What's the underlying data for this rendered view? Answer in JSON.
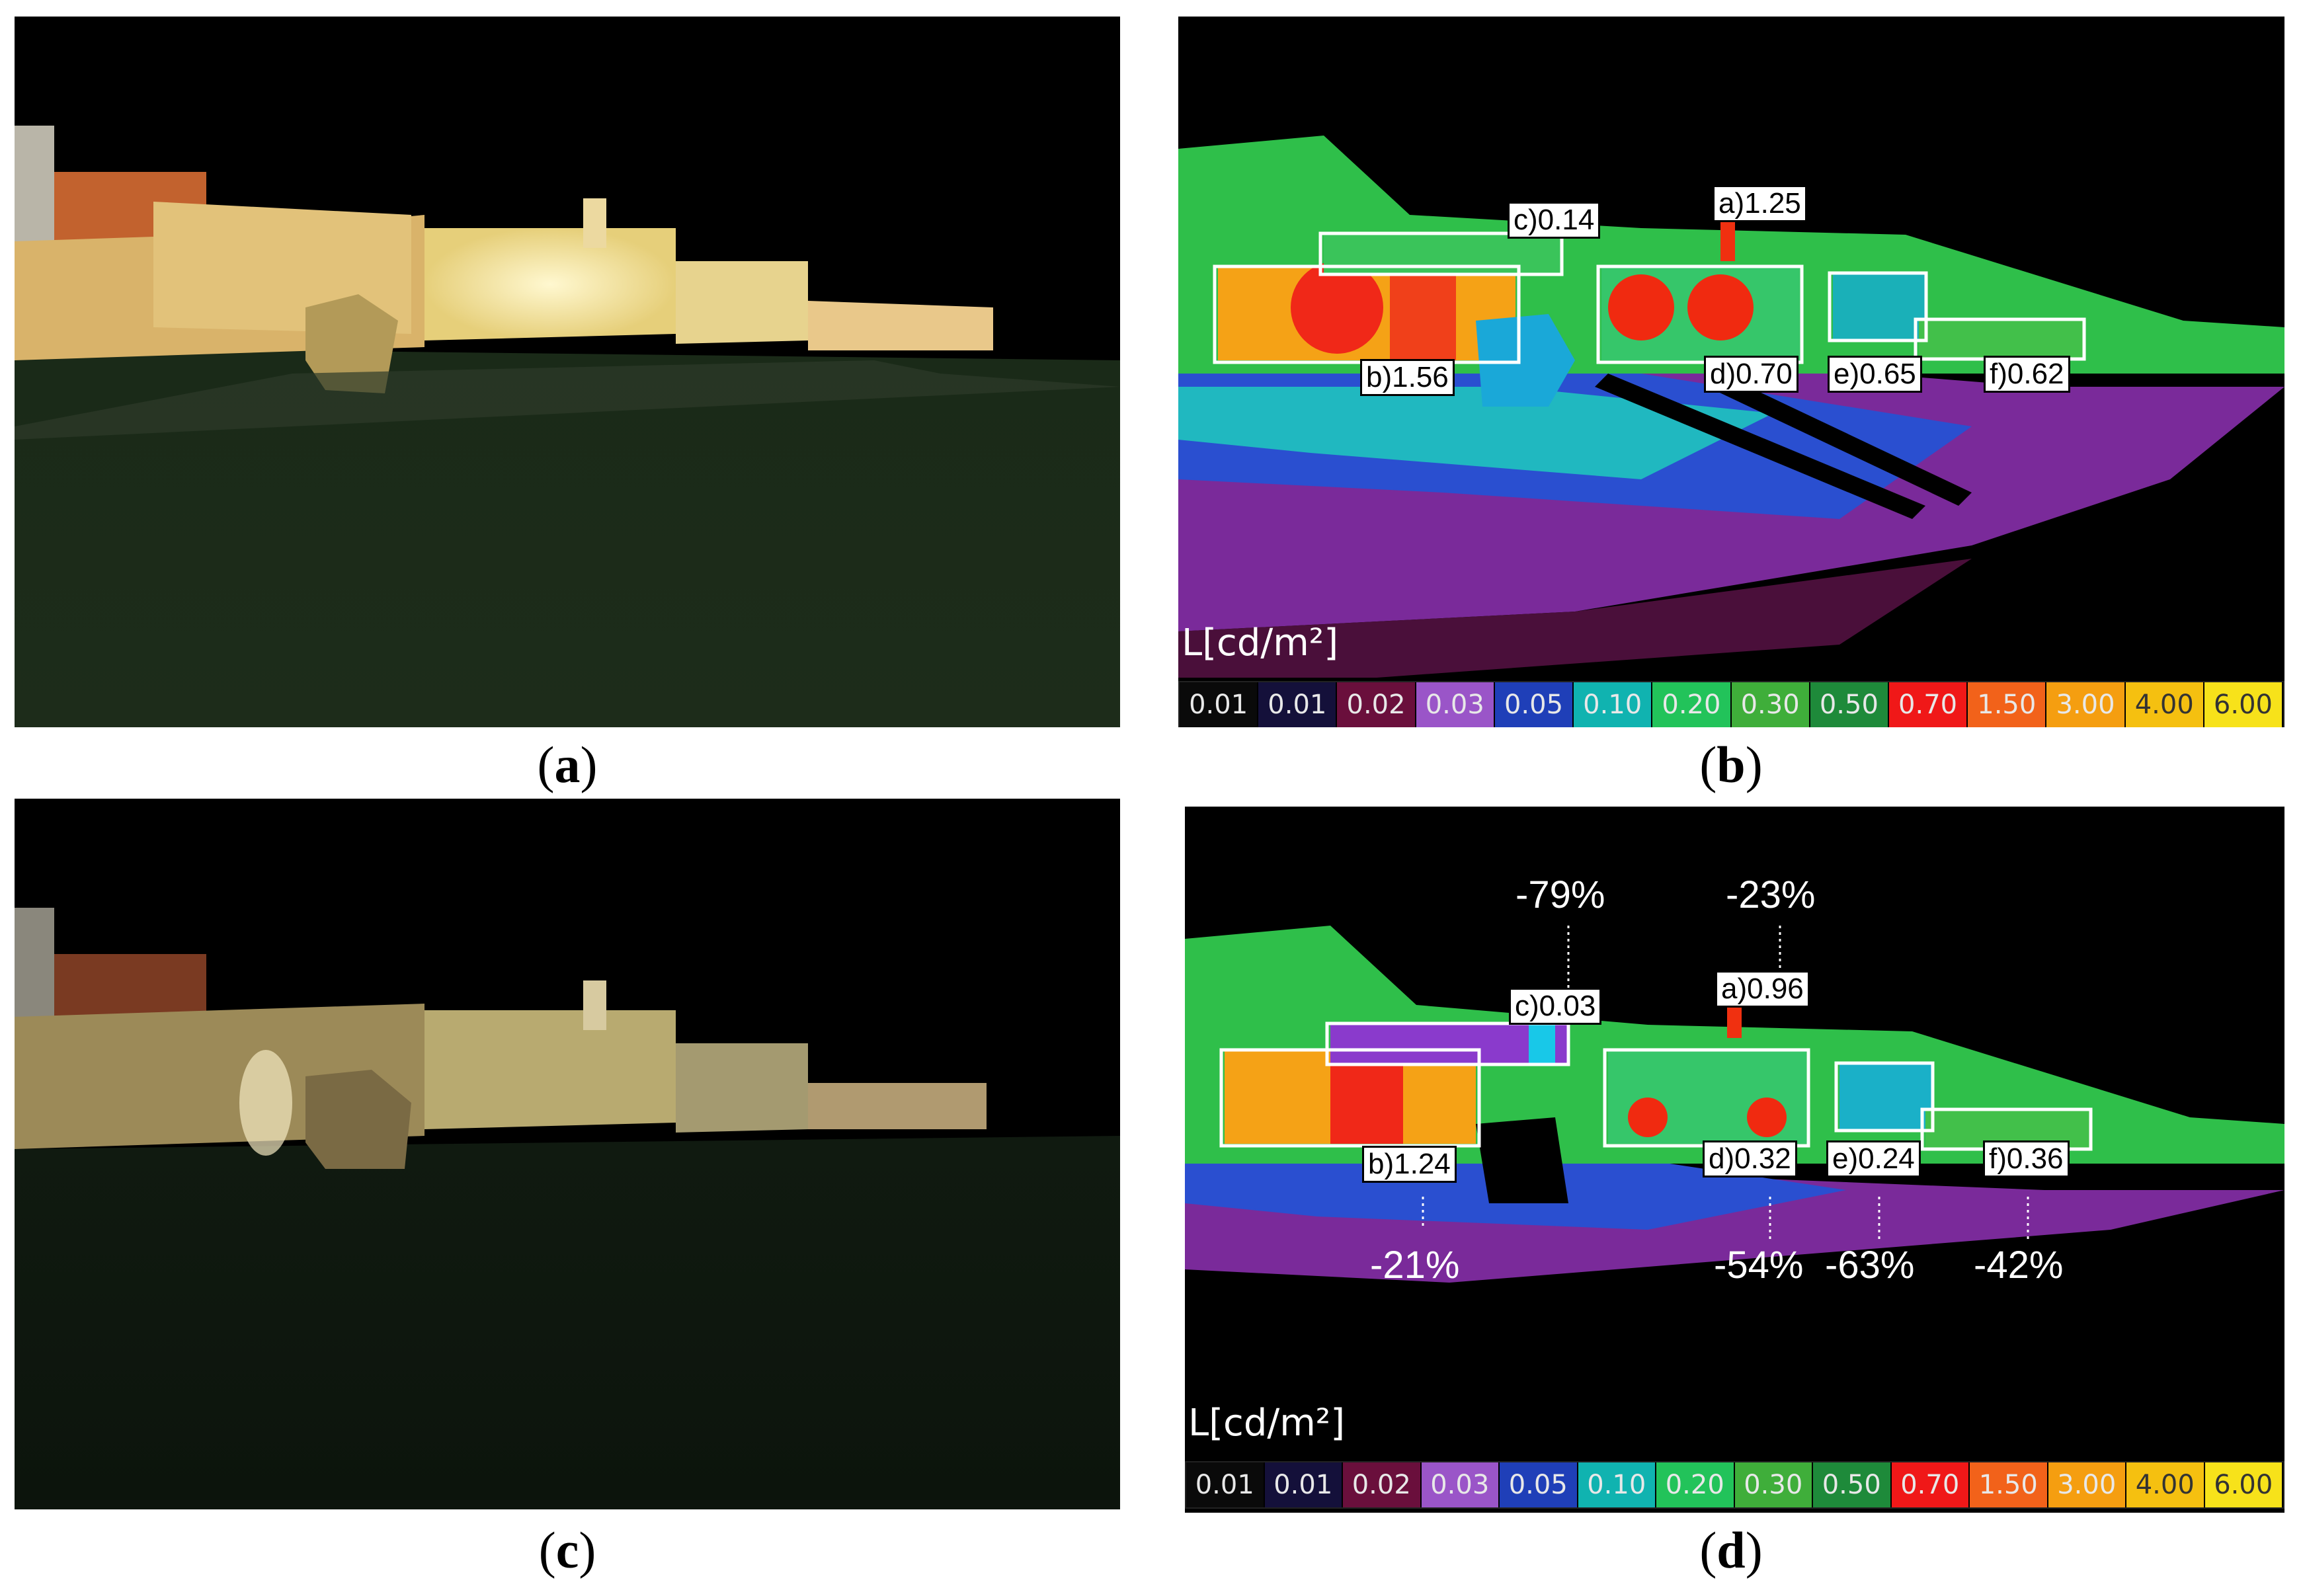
{
  "figure": {
    "panels": [
      {
        "id": "a",
        "caption_letter": "a"
      },
      {
        "id": "b",
        "caption_letter": "b",
        "unit_label": "L[cd/m²]"
      },
      {
        "id": "c",
        "caption_letter": "c"
      },
      {
        "id": "d",
        "caption_letter": "d",
        "unit_label": "L[cd/m²]"
      }
    ],
    "legend": [
      {
        "value": "0.01",
        "color": "#0a0a0a"
      },
      {
        "value": "0.01",
        "color": "#14103a"
      },
      {
        "value": "0.02",
        "color": "#6a0f3c"
      },
      {
        "value": "0.03",
        "color": "#9a55c8"
      },
      {
        "value": "0.05",
        "color": "#1f3fb8"
      },
      {
        "value": "0.10",
        "color": "#10b3b0"
      },
      {
        "value": "0.20",
        "color": "#22c35a"
      },
      {
        "value": "0.30",
        "color": "#3fae3a"
      },
      {
        "value": "0.50",
        "color": "#1e8a3a"
      },
      {
        "value": "0.70",
        "color": "#f01818"
      },
      {
        "value": "1.50",
        "color": "#f2621a"
      },
      {
        "value": "3.00",
        "color": "#f59e10"
      },
      {
        "value": "4.00",
        "color": "#f5c010"
      },
      {
        "value": "6.00",
        "color": "#f7e21a"
      }
    ],
    "panel_b_labels": {
      "a": "a)1.25",
      "b": "b)1.56",
      "c": "c)0.14",
      "d": "d)0.70",
      "e": "e)0.65",
      "f": "f)0.62"
    },
    "panel_d_labels": {
      "a": "a)0.96",
      "b": "b)1.24",
      "c": "c)0.03",
      "d": "d)0.32",
      "e": "e)0.24",
      "f": "f)0.36"
    },
    "panel_d_changes": {
      "a": "-23%",
      "b": "-21%",
      "c": "-79%",
      "d": "-54%",
      "e": "-63%",
      "f": "-42%"
    }
  }
}
